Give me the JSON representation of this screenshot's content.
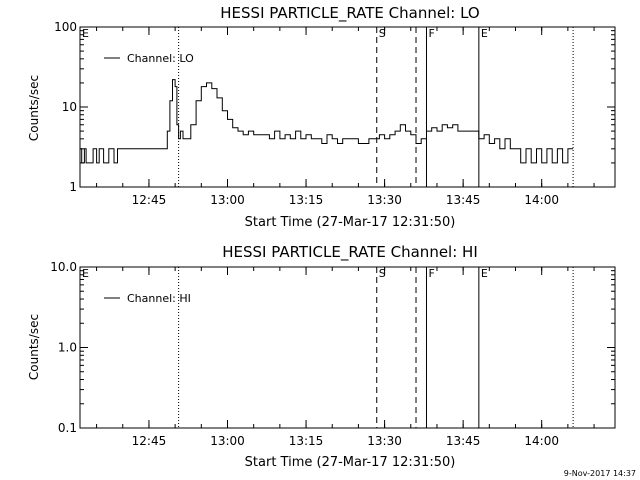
{
  "footer": {
    "timestamp": "9-Nov-2017 14:37"
  },
  "chart_data": [
    {
      "type": "line",
      "title": "HESSI PARTICLE_RATE Channel: LO",
      "xlabel": "Start Time (27-Mar-17 12:31:50)",
      "ylabel": "Counts/sec",
      "yscale": "log",
      "ylim": [
        1,
        100
      ],
      "xlim": [
        "12:31:50",
        "14:14:00"
      ],
      "x_ticks": [
        "12:45",
        "13:00",
        "13:15",
        "13:30",
        "13:45",
        "14:00"
      ],
      "y_ticks": [
        "1",
        "10",
        "100"
      ],
      "legend": {
        "entries": [
          "Channel: LO"
        ],
        "placement": "top-left"
      },
      "markers": [
        {
          "label": "E",
          "time": "12:31:50",
          "style": "solid"
        },
        {
          "label": "",
          "time": "12:50:40",
          "style": "dotted"
        },
        {
          "label": "S",
          "time": "13:28:30",
          "style": "dashed"
        },
        {
          "label": "",
          "time": "13:36:00",
          "style": "dashed"
        },
        {
          "label": "F",
          "time": "13:38:00",
          "style": "solid"
        },
        {
          "label": "E",
          "time": "13:48:00",
          "style": "solid"
        },
        {
          "label": "",
          "time": "14:06:00",
          "style": "dotted"
        }
      ],
      "series": [
        {
          "name": "Channel: LO",
          "points": [
            [
              "12:31:50",
              3
            ],
            [
              "12:32:10",
              2
            ],
            [
              "12:32:40",
              3
            ],
            [
              "12:33:00",
              2
            ],
            [
              "12:34:00",
              2
            ],
            [
              "12:34:20",
              3
            ],
            [
              "12:35:00",
              2
            ],
            [
              "12:35:30",
              3
            ],
            [
              "12:36:00",
              3
            ],
            [
              "12:36:20",
              2
            ],
            [
              "12:37:00",
              2
            ],
            [
              "12:37:20",
              3
            ],
            [
              "12:38:00",
              3
            ],
            [
              "12:38:20",
              2
            ],
            [
              "12:39:00",
              3
            ],
            [
              "12:40:00",
              3
            ],
            [
              "12:45:00",
              3
            ],
            [
              "12:48:00",
              3
            ],
            [
              "12:48:30",
              5
            ],
            [
              "12:49:00",
              12
            ],
            [
              "12:49:30",
              22
            ],
            [
              "12:50:00",
              18
            ],
            [
              "12:50:20",
              6
            ],
            [
              "12:50:40",
              4
            ],
            [
              "12:51:00",
              5
            ],
            [
              "12:51:30",
              4
            ],
            [
              "12:52:00",
              4
            ],
            [
              "12:53:00",
              6
            ],
            [
              "12:54:00",
              12
            ],
            [
              "12:55:00",
              18
            ],
            [
              "12:56:00",
              20
            ],
            [
              "12:57:00",
              17
            ],
            [
              "12:58:00",
              13
            ],
            [
              "12:59:00",
              9
            ],
            [
              "13:00:00",
              7
            ],
            [
              "13:01:00",
              5.5
            ],
            [
              "13:02:00",
              5
            ],
            [
              "13:03:00",
              4.5
            ],
            [
              "13:04:00",
              5
            ],
            [
              "13:05:00",
              4.5
            ],
            [
              "13:07:00",
              4.5
            ],
            [
              "13:08:00",
              4
            ],
            [
              "13:09:00",
              5
            ],
            [
              "13:10:00",
              4
            ],
            [
              "13:11:00",
              4.5
            ],
            [
              "13:12:00",
              4
            ],
            [
              "13:13:00",
              5
            ],
            [
              "13:14:00",
              4
            ],
            [
              "13:15:00",
              4.5
            ],
            [
              "13:16:00",
              4
            ],
            [
              "13:17:00",
              4
            ],
            [
              "13:18:00",
              3.5
            ],
            [
              "13:19:00",
              4.5
            ],
            [
              "13:20:00",
              4
            ],
            [
              "13:21:00",
              3.5
            ],
            [
              "13:22:00",
              4
            ],
            [
              "13:24:00",
              4
            ],
            [
              "13:25:00",
              3.5
            ],
            [
              "13:27:00",
              4
            ],
            [
              "13:28:00",
              4
            ],
            [
              "13:29:00",
              4.5
            ],
            [
              "13:30:00",
              4
            ],
            [
              "13:31:00",
              4.5
            ],
            [
              "13:32:00",
              5
            ],
            [
              "13:33:00",
              6
            ],
            [
              "13:34:00",
              5
            ],
            [
              "13:35:00",
              4.5
            ],
            [
              "13:36:00",
              3.5
            ],
            [
              "13:37:00",
              4
            ],
            [
              "13:38:00",
              5
            ],
            [
              "13:39:00",
              5.5
            ],
            [
              "13:40:00",
              5
            ],
            [
              "13:41:00",
              6
            ],
            [
              "13:42:00",
              5.5
            ],
            [
              "13:43:00",
              6
            ],
            [
              "13:44:00",
              5
            ],
            [
              "13:45:00",
              5
            ],
            [
              "13:47:00",
              5
            ],
            [
              "13:48:00",
              4
            ],
            [
              "13:49:00",
              4.5
            ],
            [
              "13:50:00",
              3.5
            ],
            [
              "13:51:00",
              4
            ],
            [
              "13:52:00",
              3
            ],
            [
              "13:53:00",
              4
            ],
            [
              "13:54:00",
              3
            ],
            [
              "13:55:00",
              3
            ],
            [
              "13:56:00",
              2
            ],
            [
              "13:57:00",
              3
            ],
            [
              "13:58:00",
              2
            ],
            [
              "13:59:00",
              3
            ],
            [
              "14:00:00",
              2
            ],
            [
              "14:01:00",
              3
            ],
            [
              "14:02:00",
              2
            ],
            [
              "14:03:00",
              3
            ],
            [
              "14:04:00",
              2
            ],
            [
              "14:05:00",
              3
            ],
            [
              "14:06:00",
              3
            ]
          ]
        }
      ]
    },
    {
      "type": "line",
      "title": "HESSI PARTICLE_RATE Channel: HI",
      "xlabel": "Start Time (27-Mar-17 12:31:50)",
      "ylabel": "Counts/sec",
      "yscale": "log",
      "ylim": [
        0.1,
        10
      ],
      "xlim": [
        "12:31:50",
        "14:14:00"
      ],
      "x_ticks": [
        "12:45",
        "13:00",
        "13:15",
        "13:30",
        "13:45",
        "14:00"
      ],
      "y_ticks": [
        "0.1",
        "1.0",
        "10.0"
      ],
      "legend": {
        "entries": [
          "Channel: HI"
        ],
        "placement": "top-left"
      },
      "markers": [
        {
          "label": "E",
          "time": "12:31:50",
          "style": "solid"
        },
        {
          "label": "",
          "time": "12:50:40",
          "style": "dotted"
        },
        {
          "label": "S",
          "time": "13:28:30",
          "style": "dashed"
        },
        {
          "label": "",
          "time": "13:36:00",
          "style": "dashed"
        },
        {
          "label": "F",
          "time": "13:38:00",
          "style": "solid"
        },
        {
          "label": "E",
          "time": "13:48:00",
          "style": "solid"
        },
        {
          "label": "",
          "time": "14:06:00",
          "style": "dotted"
        }
      ],
      "series": [
        {
          "name": "Channel: HI",
          "points": []
        }
      ]
    }
  ]
}
